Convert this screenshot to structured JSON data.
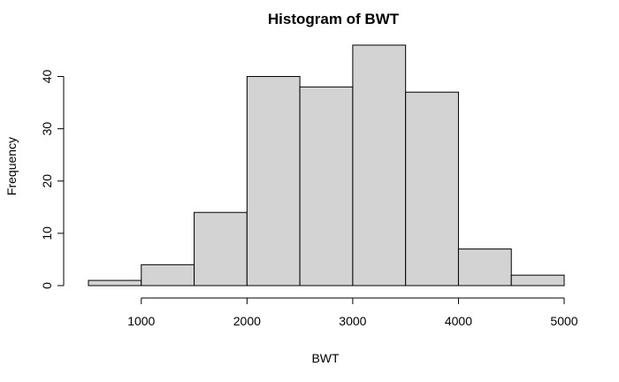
{
  "chart_data": {
    "type": "bar",
    "title": "Histogram of BWT",
    "xlabel": "BWT",
    "ylabel": "Frequency",
    "bins": [
      {
        "from": 500,
        "to": 1000,
        "count": 1
      },
      {
        "from": 1000,
        "to": 1500,
        "count": 4
      },
      {
        "from": 1500,
        "to": 2000,
        "count": 14
      },
      {
        "from": 2000,
        "to": 2500,
        "count": 40
      },
      {
        "from": 2500,
        "to": 3000,
        "count": 38
      },
      {
        "from": 3000,
        "to": 3500,
        "count": 46
      },
      {
        "from": 3500,
        "to": 4000,
        "count": 37
      },
      {
        "from": 4000,
        "to": 4500,
        "count": 7
      },
      {
        "from": 4500,
        "to": 5000,
        "count": 2
      }
    ],
    "x_ticks": [
      "1000",
      "2000",
      "3000",
      "4000",
      "5000"
    ],
    "y_ticks": [
      "0",
      "10",
      "20",
      "30",
      "40"
    ],
    "xlim": [
      500,
      5000
    ],
    "ylim": [
      0,
      46
    ],
    "grid": false,
    "colors": {
      "bar_fill": "#d3d3d3",
      "bar_stroke": "#000000",
      "axis": "#000000",
      "background": "#ffffff"
    }
  }
}
